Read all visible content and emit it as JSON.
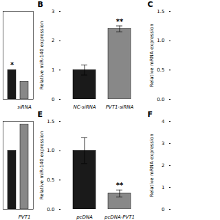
{
  "chart_data": [
    {
      "type": "bar",
      "categories": [
        null,
        "siRNA"
      ],
      "values": [
        1.0,
        0.6
      ],
      "colors": [
        "#1a1a1a",
        "#888888"
      ],
      "ylim": [
        0,
        3
      ],
      "yticks": [],
      "tick_labels": "x",
      "annotations": [
        {
          "text": "*",
          "x": 0,
          "y": 1.08
        }
      ]
    },
    {
      "type": "bar",
      "title": "B",
      "categories": [
        "NC-siRNA",
        "PVT1-siRNA"
      ],
      "values": [
        1.0,
        2.4
      ],
      "errors": [
        0.17,
        0.1
      ],
      "colors": [
        "#1a1a1a",
        "#888888"
      ],
      "y_label": "Relative miR-140 expression",
      "ylim": [
        0,
        3
      ],
      "yticks": [
        0,
        1,
        2,
        3
      ],
      "annotations": [
        {
          "text": "**",
          "x": 1,
          "y": 2.57
        }
      ]
    },
    {
      "type": "bar",
      "title": "C",
      "categories": [],
      "values": [],
      "y_label": "Relative mRNA expression",
      "ylim": [
        0,
        1.5
      ],
      "yticks": [
        {
          "value": 0,
          "label": "0.0"
        },
        0.5,
        {
          "value": 1,
          "label": "1.0"
        },
        1.5
      ],
      "tick_labels": "y"
    },
    {
      "type": "bar",
      "categories": [
        null,
        "PVT1"
      ],
      "values": [
        1.0,
        1.45
      ],
      "colors": [
        "#1a1a1a",
        "#888888"
      ],
      "ylim": [
        0,
        1.5
      ],
      "yticks": [],
      "tick_labels": "x"
    },
    {
      "type": "bar",
      "title": "E",
      "categories": [
        "pcDNA",
        "pcDNA-PVT1"
      ],
      "values": [
        1.0,
        0.27
      ],
      "errors": [
        0.22,
        0.06
      ],
      "colors": [
        "#1a1a1a",
        "#888888"
      ],
      "y_label": "Relative miR-140 expression",
      "ylim": [
        0,
        1.5
      ],
      "yticks": [
        {
          "value": 0,
          "label": "0.0"
        },
        0.5,
        {
          "value": 1,
          "label": "1.0"
        },
        1.5
      ],
      "annotations": [
        {
          "text": "**",
          "x": 1,
          "y": 0.37
        }
      ]
    },
    {
      "type": "bar",
      "title": "F",
      "categories": [],
      "values": [],
      "y_label": "Relative mRNA expression",
      "ylim": [
        0,
        4
      ],
      "yticks": [
        0,
        1,
        2,
        3,
        4
      ],
      "tick_labels": "y"
    }
  ]
}
